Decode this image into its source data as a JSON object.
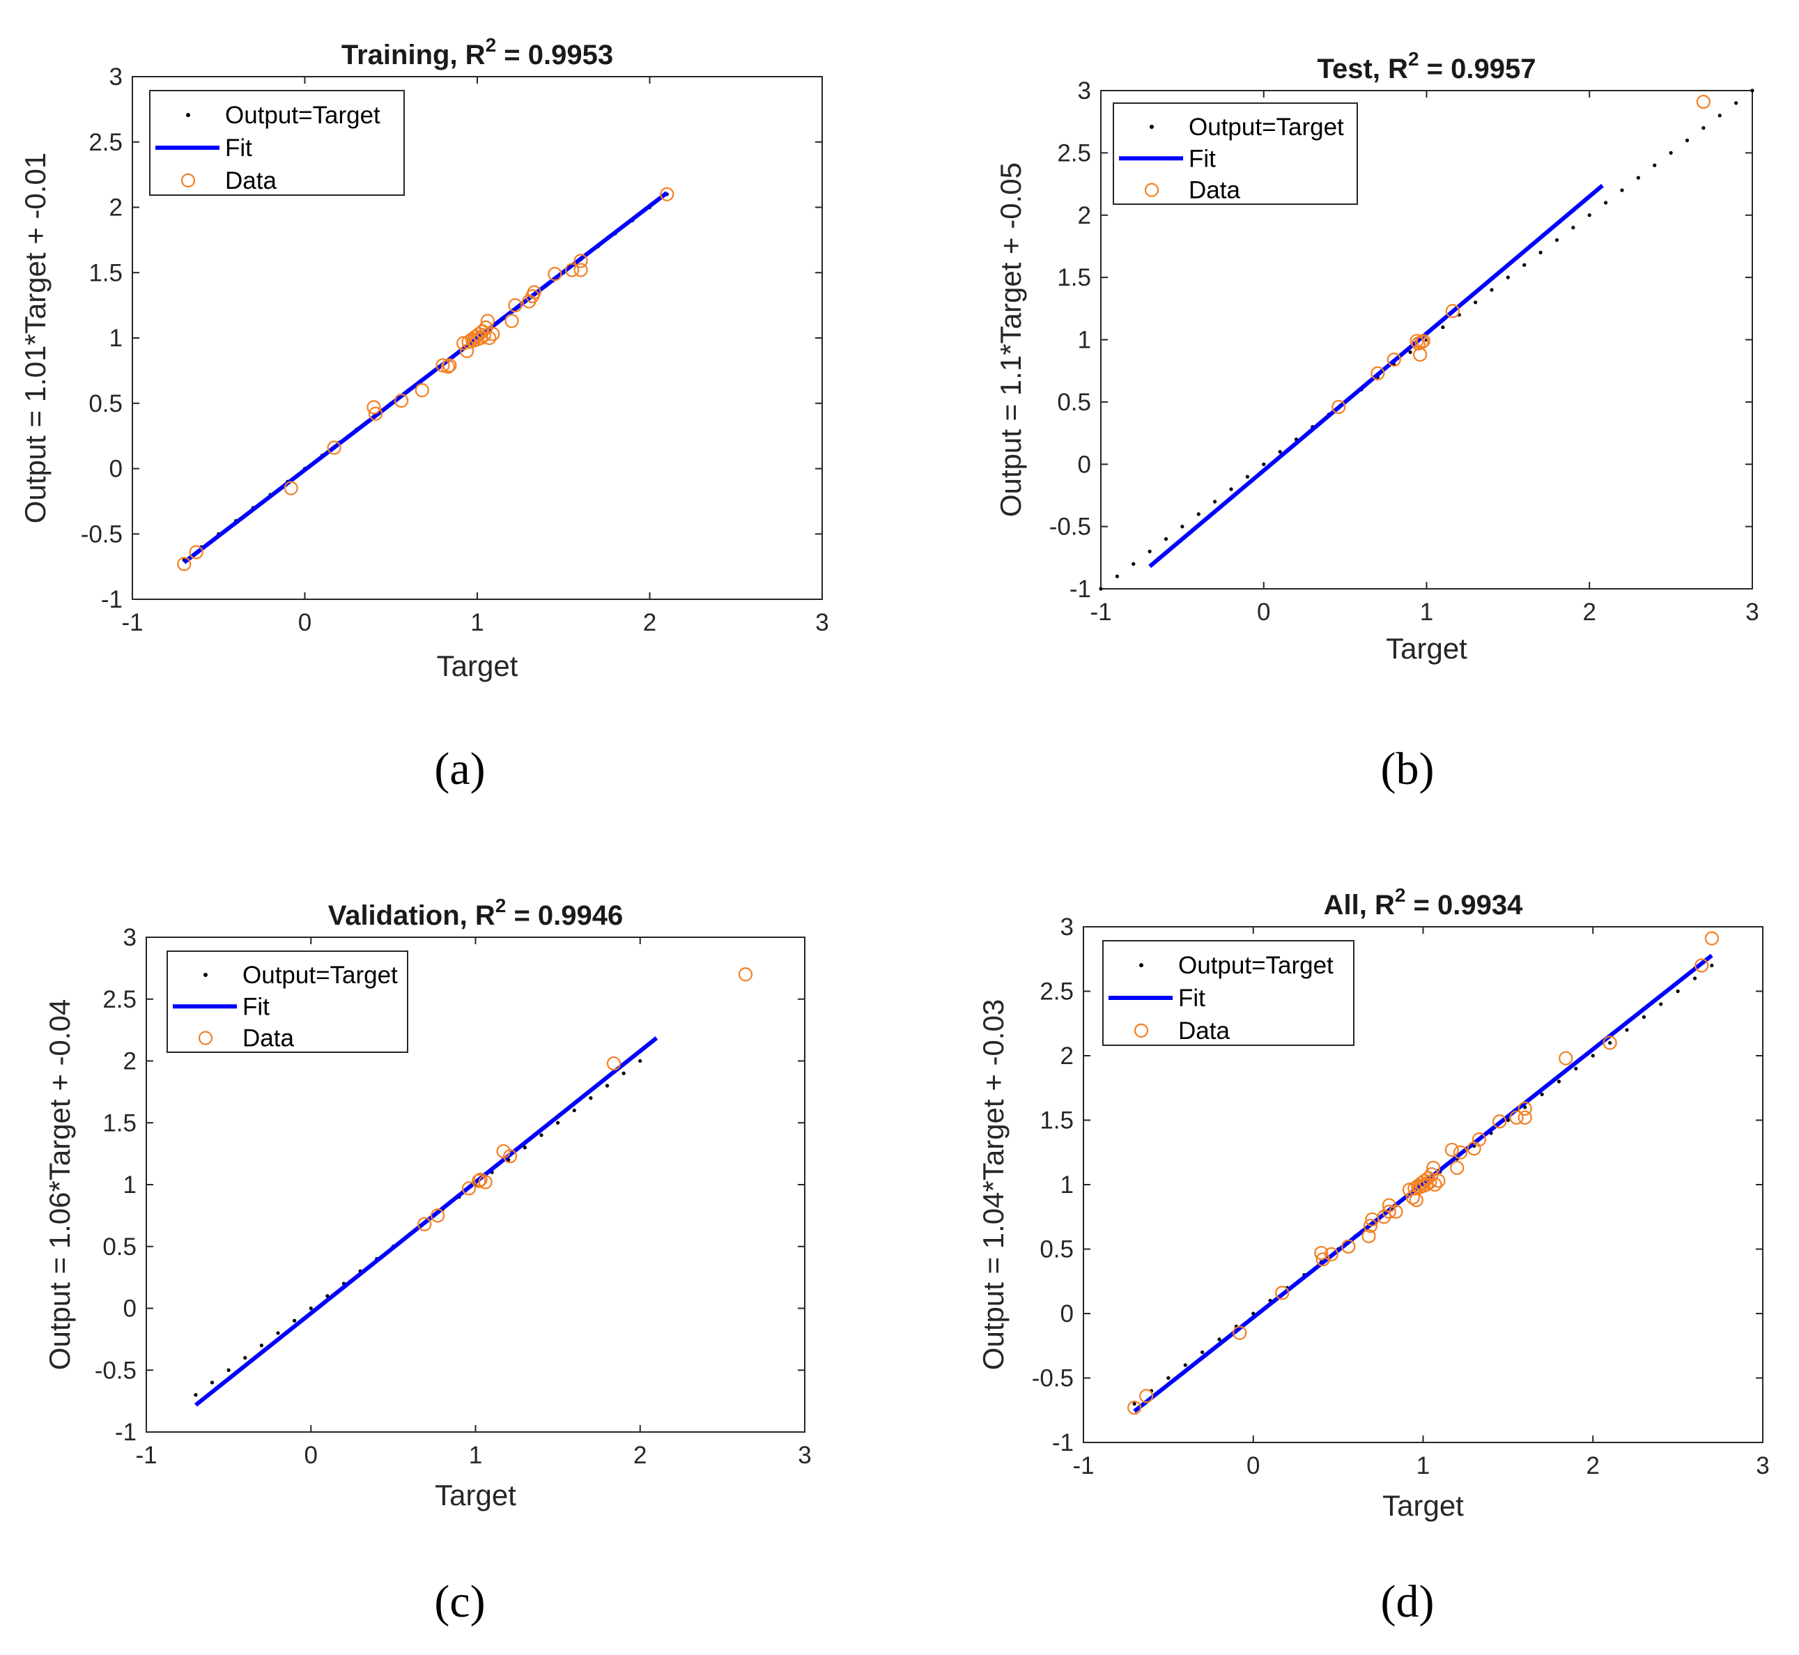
{
  "chart_data": [
    {
      "id": "training",
      "type": "scatter",
      "title": "Training, R",
      "title_superscript": "2",
      "title_value": " = 0.9953",
      "xlabel": "Target",
      "ylabel": "Output = 1.01*Target + -0.01",
      "xlim": [
        -1,
        3
      ],
      "ylim": [
        -1,
        3
      ],
      "xticks": [
        "-1",
        "0",
        "1",
        "2",
        "3"
      ],
      "yticks": [
        "-1",
        "-0.5",
        "0",
        "0.5",
        "1",
        "1.5",
        "2",
        "2.5",
        "3"
      ],
      "caption": "(a)",
      "legend": [
        "Output=Target",
        "Fit",
        "Data"
      ],
      "fit": {
        "slope": 1.01,
        "intercept": -0.01,
        "x_range": [
          -0.7,
          2.1
        ]
      },
      "target_line_range": [
        -0.7,
        2.1
      ],
      "data": [
        [
          -0.7,
          -0.73
        ],
        [
          -0.63,
          -0.64
        ],
        [
          -0.08,
          -0.15
        ],
        [
          0.17,
          0.16
        ],
        [
          0.4,
          0.47
        ],
        [
          0.41,
          0.42
        ],
        [
          0.56,
          0.52
        ],
        [
          0.68,
          0.6
        ],
        [
          0.8,
          0.79
        ],
        [
          0.83,
          0.78
        ],
        [
          0.84,
          0.79
        ],
        [
          0.92,
          0.96
        ],
        [
          0.94,
          0.9
        ],
        [
          0.95,
          0.97
        ],
        [
          0.97,
          0.99
        ],
        [
          0.98,
          0.98
        ],
        [
          0.99,
          1.01
        ],
        [
          1.0,
          0.99
        ],
        [
          1.01,
          1.03
        ],
        [
          1.02,
          1.0
        ],
        [
          1.03,
          1.05
        ],
        [
          1.04,
          1.02
        ],
        [
          1.05,
          1.08
        ],
        [
          1.06,
          1.13
        ],
        [
          1.07,
          1.0
        ],
        [
          1.09,
          1.03
        ],
        [
          1.2,
          1.13
        ],
        [
          1.22,
          1.25
        ],
        [
          1.3,
          1.28
        ],
        [
          1.32,
          1.32
        ],
        [
          1.33,
          1.35
        ],
        [
          1.45,
          1.49
        ],
        [
          1.55,
          1.52
        ],
        [
          1.6,
          1.52
        ],
        [
          1.6,
          1.59
        ],
        [
          2.1,
          2.1
        ]
      ]
    },
    {
      "id": "test",
      "type": "scatter",
      "title": "Test, R",
      "title_superscript": "2",
      "title_value": " = 0.9957",
      "xlabel": "Target",
      "ylabel": "Output = 1.1*Target + -0.05",
      "xlim": [
        -1,
        3
      ],
      "ylim": [
        -1,
        3
      ],
      "xticks": [
        "-1",
        "0",
        "1",
        "2",
        "3"
      ],
      "yticks": [
        "-1",
        "-0.5",
        "0",
        "0.5",
        "1",
        "1.5",
        "2",
        "2.5",
        "3"
      ],
      "caption": "(b)",
      "legend": [
        "Output=Target",
        "Fit",
        "Data"
      ],
      "fit": {
        "slope": 1.1,
        "intercept": -0.05,
        "x_range": [
          -0.7,
          2.08
        ]
      },
      "target_line_range": [
        -1,
        3
      ],
      "data": [
        [
          0.46,
          0.46
        ],
        [
          0.7,
          0.73
        ],
        [
          0.8,
          0.84
        ],
        [
          0.94,
          0.99
        ],
        [
          0.95,
          0.97
        ],
        [
          0.96,
          0.88
        ],
        [
          0.97,
          0.98
        ],
        [
          0.98,
          0.99
        ],
        [
          1.16,
          1.23
        ],
        [
          2.7,
          2.91
        ]
      ]
    },
    {
      "id": "validation",
      "type": "scatter",
      "title": "Validation, R",
      "title_superscript": "2",
      "title_value": " = 0.9946",
      "xlabel": "Target",
      "ylabel": "Output = 1.06*Target + -0.04",
      "xlim": [
        -1,
        3
      ],
      "ylim": [
        -1,
        3
      ],
      "xticks": [
        "-1",
        "0",
        "1",
        "2",
        "3"
      ],
      "yticks": [
        "-1",
        "-0.5",
        "0",
        "0.5",
        "1",
        "1.5",
        "2",
        "2.5",
        "3"
      ],
      "caption": "(c)",
      "legend": [
        "Output=Target",
        "Fit",
        "Data"
      ],
      "fit": {
        "slope": 1.06,
        "intercept": -0.04,
        "x_range": [
          -0.7,
          2.1
        ]
      },
      "target_line_range": [
        -0.7,
        2.0
      ],
      "data": [
        [
          0.69,
          0.68
        ],
        [
          0.77,
          0.75
        ],
        [
          0.96,
          0.97
        ],
        [
          1.02,
          1.03
        ],
        [
          1.03,
          1.04
        ],
        [
          1.06,
          1.02
        ],
        [
          1.17,
          1.27
        ],
        [
          1.21,
          1.23
        ],
        [
          1.84,
          1.98
        ],
        [
          2.64,
          2.7
        ]
      ]
    },
    {
      "id": "all",
      "type": "scatter",
      "title": "All, R",
      "title_superscript": "2",
      "title_value": " = 0.9934",
      "xlabel": "Target",
      "ylabel": "Output = 1.04*Target + -0.03",
      "xlim": [
        -1,
        3
      ],
      "ylim": [
        -1,
        3
      ],
      "xticks": [
        "-1",
        "0",
        "1",
        "2",
        "3"
      ],
      "yticks": [
        "-1",
        "-0.5",
        "0",
        "0.5",
        "1",
        "1.5",
        "2",
        "2.5",
        "3"
      ],
      "caption": "(d)",
      "legend": [
        "Output=Target",
        "Fit",
        "Data"
      ],
      "fit": {
        "slope": 1.04,
        "intercept": -0.03,
        "x_range": [
          -0.7,
          2.7
        ]
      },
      "target_line_range": [
        -0.7,
        2.7
      ],
      "data": [
        [
          -0.7,
          -0.73
        ],
        [
          -0.63,
          -0.64
        ],
        [
          -0.08,
          -0.15
        ],
        [
          0.17,
          0.16
        ],
        [
          0.4,
          0.47
        ],
        [
          0.41,
          0.42
        ],
        [
          0.46,
          0.46
        ],
        [
          0.56,
          0.52
        ],
        [
          0.68,
          0.6
        ],
        [
          0.69,
          0.68
        ],
        [
          0.7,
          0.73
        ],
        [
          0.77,
          0.75
        ],
        [
          0.8,
          0.79
        ],
        [
          0.8,
          0.84
        ],
        [
          0.84,
          0.79
        ],
        [
          0.92,
          0.96
        ],
        [
          0.94,
          0.9
        ],
        [
          0.95,
          0.97
        ],
        [
          0.96,
          0.88
        ],
        [
          0.97,
          0.99
        ],
        [
          0.98,
          0.98
        ],
        [
          0.99,
          1.01
        ],
        [
          1.0,
          0.99
        ],
        [
          1.01,
          1.03
        ],
        [
          1.02,
          1.0
        ],
        [
          1.03,
          1.05
        ],
        [
          1.04,
          1.02
        ],
        [
          1.05,
          1.08
        ],
        [
          1.06,
          1.13
        ],
        [
          1.07,
          1.0
        ],
        [
          1.09,
          1.03
        ],
        [
          1.17,
          1.27
        ],
        [
          1.2,
          1.13
        ],
        [
          1.22,
          1.25
        ],
        [
          1.3,
          1.28
        ],
        [
          1.33,
          1.35
        ],
        [
          1.45,
          1.49
        ],
        [
          1.55,
          1.52
        ],
        [
          1.6,
          1.52
        ],
        [
          1.6,
          1.59
        ],
        [
          1.84,
          1.98
        ],
        [
          2.1,
          2.1
        ],
        [
          2.64,
          2.7
        ],
        [
          2.7,
          2.91
        ]
      ]
    }
  ]
}
